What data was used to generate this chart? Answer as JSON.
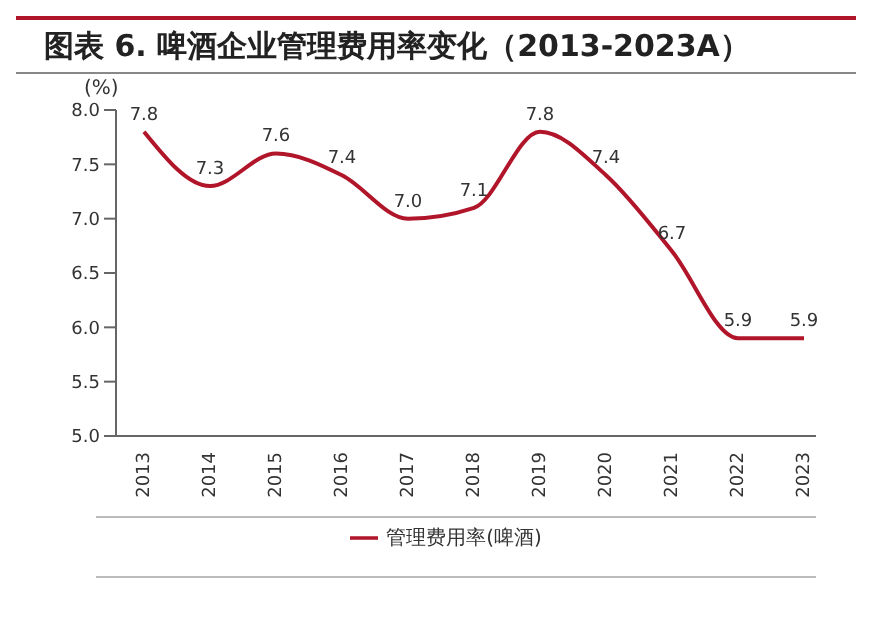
{
  "chart_data": {
    "type": "line",
    "title": "图表 6. 啤酒企业管理费用率变化（2013-2023A）",
    "ylabel": "(%)",
    "categories": [
      "2013",
      "2014",
      "2015",
      "2016",
      "2017",
      "2018",
      "2019",
      "2020",
      "2021",
      "2022",
      "2023"
    ],
    "series": [
      {
        "name": "管理费用率(啤酒)",
        "color": "#b0152a",
        "values": [
          7.8,
          7.3,
          7.6,
          7.4,
          7.0,
          7.1,
          7.8,
          7.4,
          6.7,
          5.9,
          5.9
        ],
        "value_labels": [
          "7.8",
          "7.3",
          "7.6",
          "7.4",
          "7.0",
          "7.1",
          "7.8",
          "7.4",
          "6.7",
          "5.9",
          "5.9"
        ]
      }
    ],
    "ylim": [
      5.0,
      8.0
    ],
    "yticks": [
      {
        "value": 5.0,
        "label": "5.0"
      },
      {
        "value": 5.5,
        "label": "5.5"
      },
      {
        "value": 6.0,
        "label": "6.0"
      },
      {
        "value": 6.5,
        "label": "6.5"
      },
      {
        "value": 7.0,
        "label": "7.0"
      },
      {
        "value": 7.5,
        "label": "7.5"
      },
      {
        "value": 8.0,
        "label": "8.0"
      }
    ],
    "grid": false,
    "legend": "bottom",
    "marker": "none",
    "line_style": "solid"
  }
}
